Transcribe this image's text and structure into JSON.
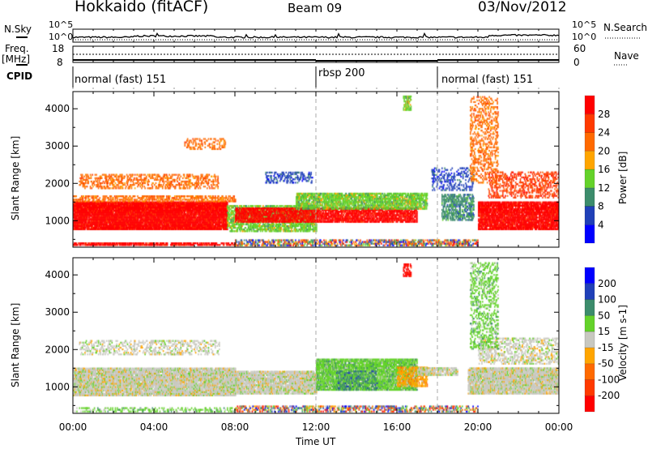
{
  "header": {
    "station": "Hokkaido (fitACF)",
    "beam": "Beam 09",
    "date": "03/Nov/2012"
  },
  "noise_panel": {
    "left_label": "N.Sky",
    "right_label": "N.Search",
    "left_ticks": [
      "10^5",
      "10^0"
    ],
    "right_ticks": [
      "10^5",
      "10^0"
    ]
  },
  "freq_panel": {
    "left_label_1": "Freq.",
    "left_label_2": "[MHz]",
    "right_label": "Nave",
    "left_ticks": [
      "18",
      "8"
    ],
    "right_ticks": [
      "60",
      "0"
    ]
  },
  "cpid_panel": {
    "label": "CPID",
    "segments": [
      {
        "name": "normal (fast) 151",
        "start_h": 0,
        "end_h": 12
      },
      {
        "name": "rbsp 200",
        "start_h": 12,
        "end_h": 18
      },
      {
        "name": "normal (fast) 151",
        "start_h": 18,
        "end_h": 24
      }
    ]
  },
  "chart_data": [
    {
      "type": "heatmap",
      "title": "Power",
      "xlabel": "",
      "ylabel": "Slant Range [km]",
      "xlim": [
        0,
        24
      ],
      "ylim": [
        290,
        4460
      ],
      "yticks": [
        "1000",
        "2000",
        "3000",
        "4000"
      ],
      "colorbar": {
        "label": "Power [dB]",
        "ticks": [
          "4",
          "8",
          "12",
          "16",
          "20",
          "24",
          "28"
        ],
        "colors": [
          "#0000ff",
          "#2040b8",
          "#3c8c6c",
          "#64d22a",
          "#ffa500",
          "#ff6a00",
          "#ff3a00",
          "#ff0000"
        ]
      },
      "regions": [
        {
          "t": [
            0,
            7.6
          ],
          "r": [
            750,
            1500
          ],
          "level": 7,
          "density": 0.95
        },
        {
          "t": [
            0,
            8
          ],
          "r": [
            1500,
            1650
          ],
          "level": 5,
          "density": 0.5
        },
        {
          "t": [
            0,
            8
          ],
          "r": [
            330,
            420
          ],
          "level": 7,
          "density": 0.7
        },
        {
          "t": [
            0.3,
            7.2
          ],
          "r": [
            1850,
            2250
          ],
          "level": 5,
          "density": 0.35
        },
        {
          "t": [
            5.5,
            7.5
          ],
          "r": [
            2900,
            3200
          ],
          "level": 5,
          "density": 0.3
        },
        {
          "t": [
            7.6,
            12
          ],
          "r": [
            700,
            1400
          ],
          "level": 3,
          "density": 0.6
        },
        {
          "t": [
            8,
            17
          ],
          "r": [
            950,
            1350
          ],
          "level": 7,
          "density": 0.75
        },
        {
          "t": [
            11,
            17.5
          ],
          "r": [
            1300,
            1750
          ],
          "level": 3,
          "density": 0.7
        },
        {
          "t": [
            9.5,
            11.8
          ],
          "r": [
            2000,
            2300
          ],
          "level": 1,
          "density": 0.35
        },
        {
          "t": [
            8,
            20
          ],
          "r": [
            320,
            500
          ],
          "level": 4,
          "density": 0.5,
          "mixed": true
        },
        {
          "t": [
            16.3,
            16.7
          ],
          "r": [
            3950,
            4350
          ],
          "level": 3,
          "density": 0.6
        },
        {
          "t": [
            18.2,
            19.8
          ],
          "r": [
            1000,
            1700
          ],
          "level": 2,
          "density": 0.55
        },
        {
          "t": [
            17.7,
            19.8
          ],
          "r": [
            1800,
            2400
          ],
          "level": 1,
          "density": 0.25
        },
        {
          "t": [
            20,
            24
          ],
          "r": [
            750,
            1500
          ],
          "level": 7,
          "density": 0.85
        },
        {
          "t": [
            20.5,
            24
          ],
          "r": [
            1600,
            2300
          ],
          "level": 6,
          "density": 0.35
        },
        {
          "t": [
            19.6,
            21
          ],
          "r": [
            2000,
            4300
          ],
          "level": 5,
          "density": 0.3
        }
      ]
    },
    {
      "type": "heatmap",
      "title": "Velocity",
      "xlabel": "Time UT",
      "ylabel": "Slant Range [km]",
      "xlim": [
        0,
        24
      ],
      "ylim": [
        290,
        4460
      ],
      "xticks": [
        "00:00",
        "04:00",
        "08:00",
        "12:00",
        "16:00",
        "20:00",
        "00:00"
      ],
      "yticks": [
        "1000",
        "2000",
        "3000",
        "4000"
      ],
      "colorbar": {
        "label": "Velocity [m s-1]",
        "ticks": [
          "200",
          "100",
          "50",
          "15",
          "-15",
          "-50",
          "-100",
          "-200"
        ],
        "colors": [
          "#0000ff",
          "#2040b8",
          "#3c8c6c",
          "#64d22a",
          "#c8c8c0",
          "#ffa500",
          "#ff6a00",
          "#ff3a00",
          "#ff0000"
        ]
      },
      "regions": [
        {
          "t": [
            0,
            8
          ],
          "r": [
            750,
            1500
          ],
          "level": 4,
          "density": 0.85
        },
        {
          "t": [
            0.3,
            7.2
          ],
          "r": [
            1850,
            2250
          ],
          "level": 4,
          "density": 0.3
        },
        {
          "t": [
            8,
            12
          ],
          "r": [
            800,
            1400
          ],
          "level": 4,
          "density": 0.8
        },
        {
          "t": [
            12,
            17
          ],
          "r": [
            900,
            1750
          ],
          "level": 3,
          "density": 0.85
        },
        {
          "t": [
            13,
            15
          ],
          "r": [
            900,
            1400
          ],
          "level": 2,
          "density": 0.3
        },
        {
          "t": [
            16,
            17.5
          ],
          "r": [
            1000,
            1500
          ],
          "level": 5,
          "density": 0.6
        },
        {
          "t": [
            17,
            19
          ],
          "r": [
            1300,
            1500
          ],
          "level": 4,
          "density": 0.7
        },
        {
          "t": [
            19.5,
            24
          ],
          "r": [
            800,
            1500
          ],
          "level": 4,
          "density": 0.85
        },
        {
          "t": [
            20,
            24
          ],
          "r": [
            1600,
            2300
          ],
          "level": 4,
          "density": 0.35
        },
        {
          "t": [
            19.6,
            21
          ],
          "r": [
            2000,
            4300
          ],
          "level": 3,
          "density": 0.3
        },
        {
          "t": [
            16.3,
            16.7
          ],
          "r": [
            3950,
            4300
          ],
          "level": 8,
          "density": 0.6
        },
        {
          "t": [
            8,
            20
          ],
          "r": [
            320,
            500
          ],
          "level": 5,
          "density": 0.45,
          "mixed": true
        },
        {
          "t": [
            0,
            8
          ],
          "r": [
            320,
            420
          ],
          "level": 3,
          "density": 0.3
        }
      ]
    }
  ]
}
